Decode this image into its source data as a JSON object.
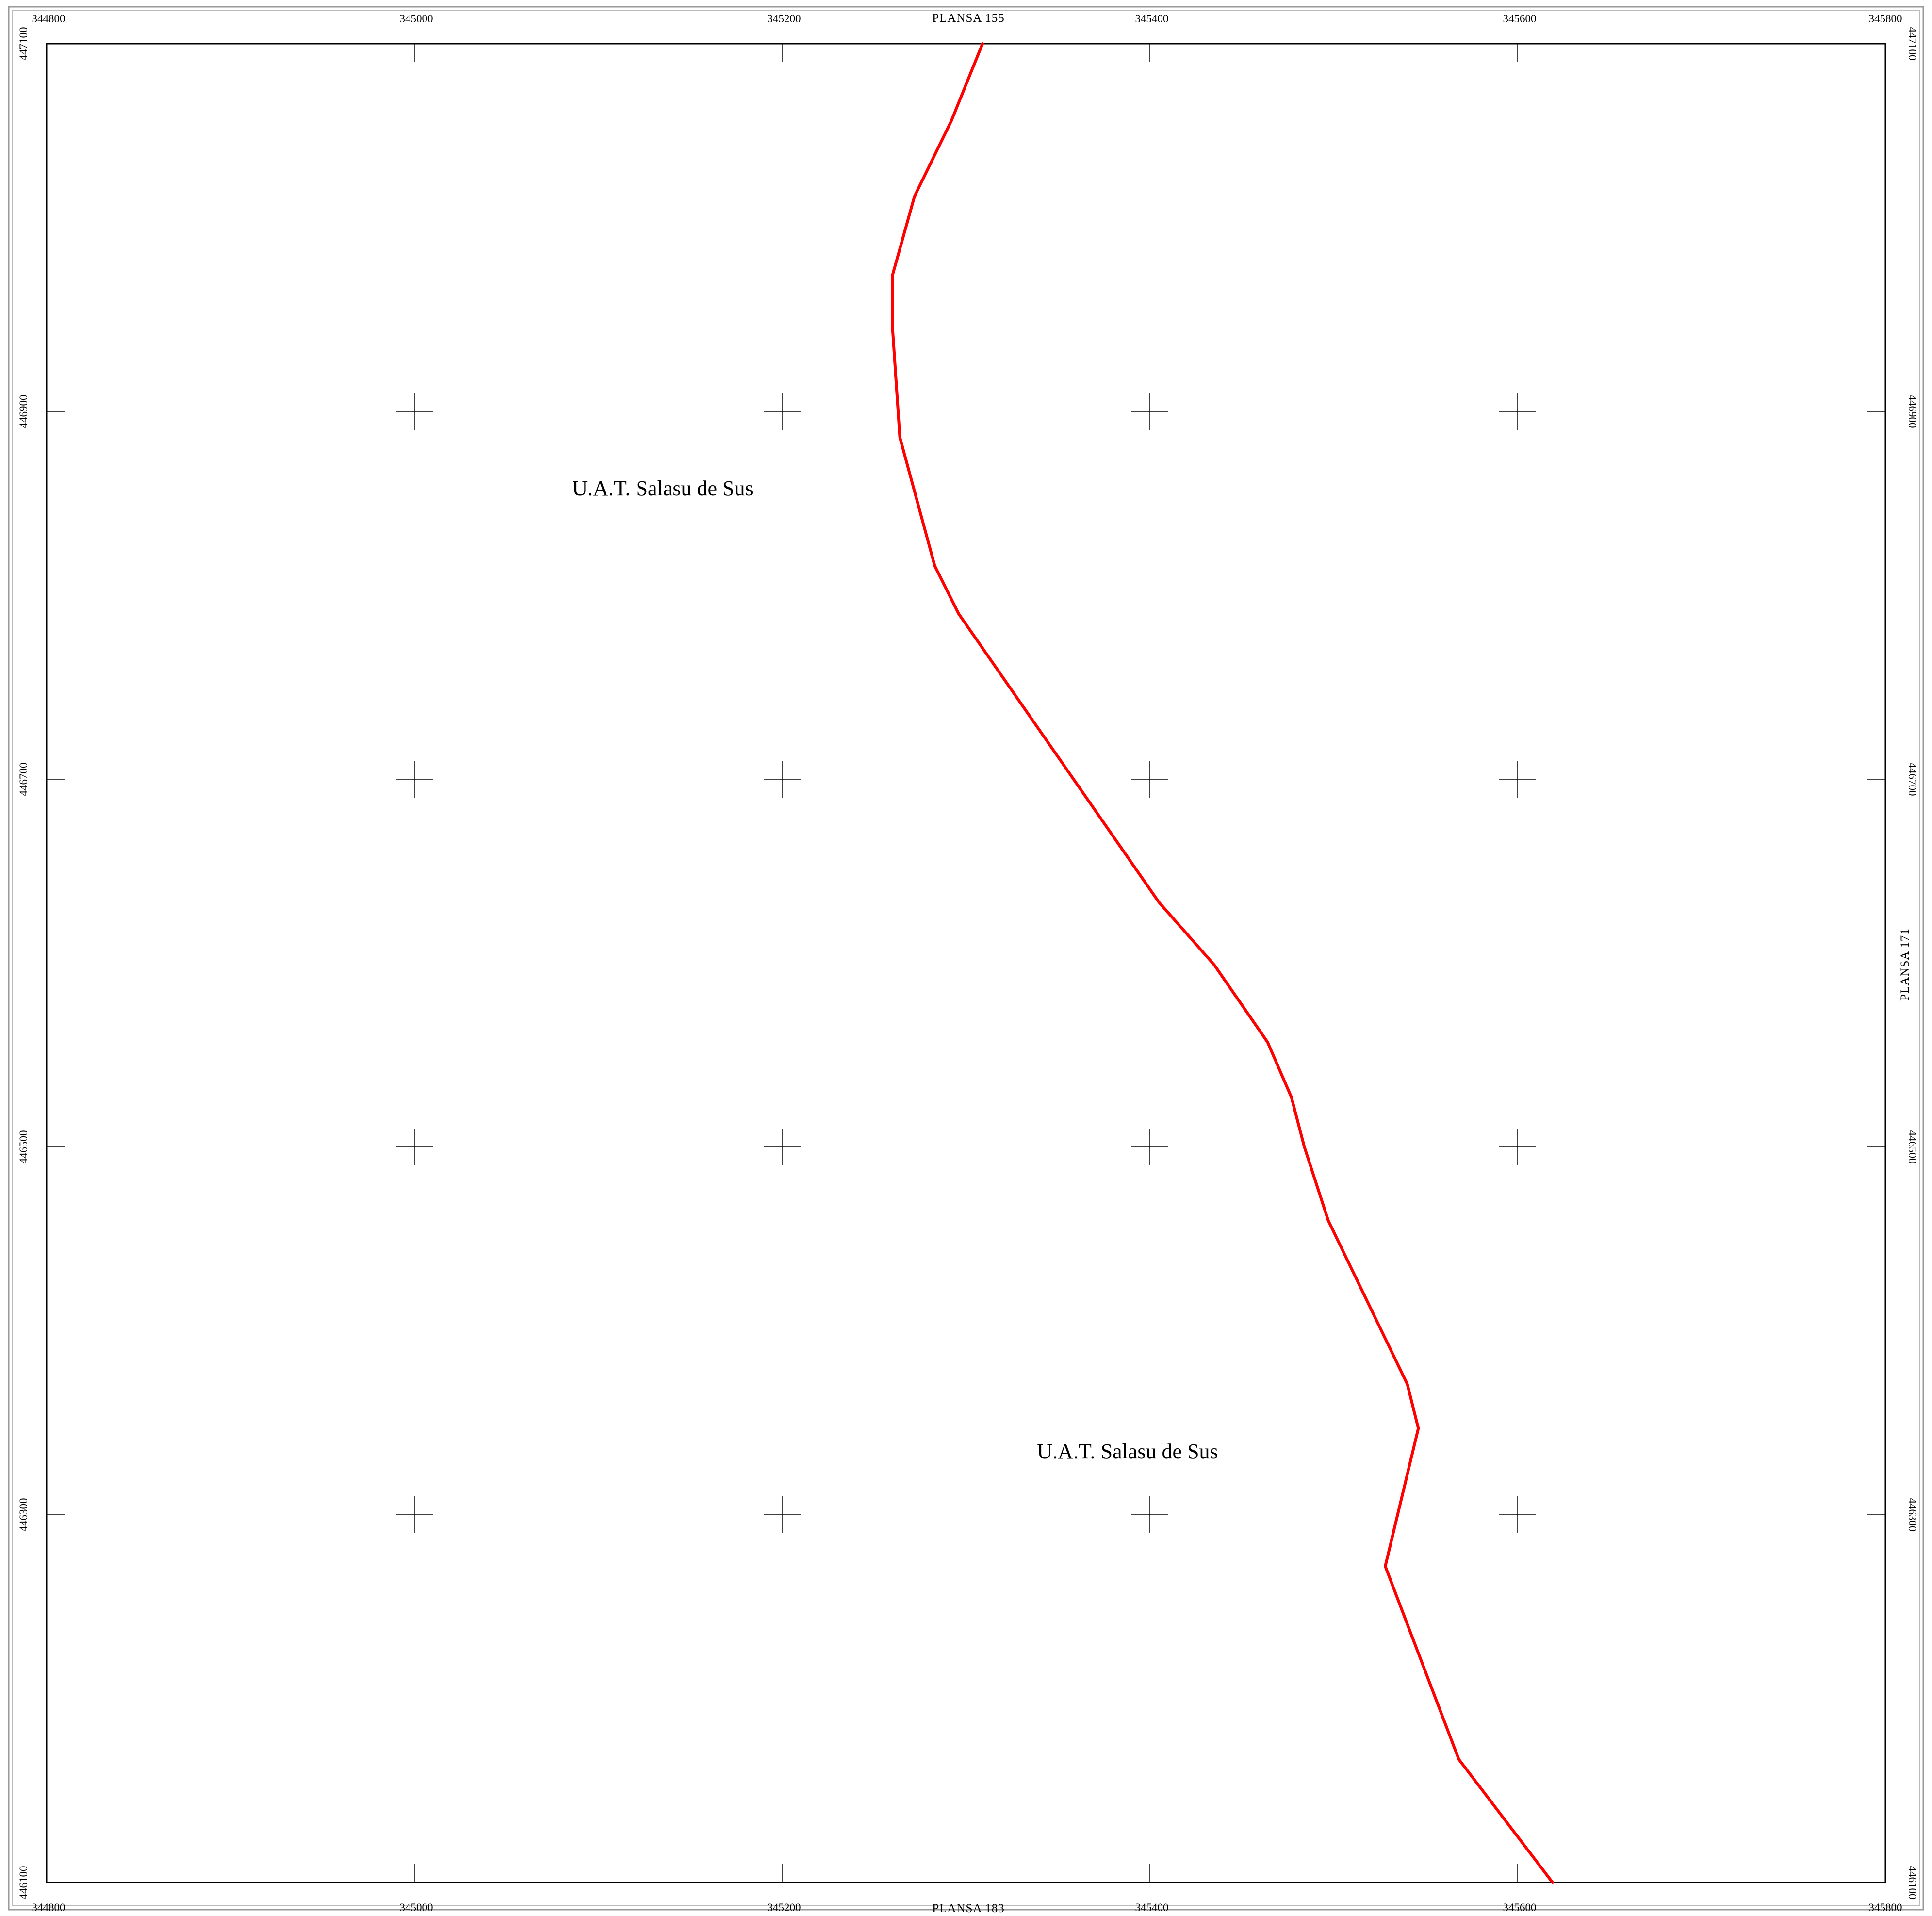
{
  "colors": {
    "boundary": "#ff0000",
    "grid": "#000000",
    "background": "#ffffff"
  },
  "sheet_labels": {
    "top": "PLANSA  155",
    "bottom": "PLANSA  183",
    "right": "PLANSA  171"
  },
  "area_labels": [
    "U.A.T. Salasu de Sus",
    "U.A.T. Salasu de Sus"
  ],
  "easting_ticks": [
    "344800",
    "345000",
    "345200",
    "345400",
    "345600",
    "345800"
  ],
  "northing_ticks": [
    "447100",
    "446900",
    "446700",
    "446500",
    "446300",
    "446100"
  ],
  "map_data": {
    "easting_range": [
      344800,
      345800
    ],
    "northing_range": [
      446100,
      447100
    ],
    "grid_crosses": {
      "eastings": [
        345000,
        345200,
        345400,
        345600
      ],
      "northings": [
        446900,
        446700,
        446500,
        446300
      ]
    },
    "boundary_line": [
      [
        345309,
        447100
      ],
      [
        345292,
        447058
      ],
      [
        345272,
        447017
      ],
      [
        345260,
        446974
      ],
      [
        345260,
        446946
      ],
      [
        345264,
        446886
      ],
      [
        345283,
        446816
      ],
      [
        345296,
        446790
      ],
      [
        345405,
        446633
      ],
      [
        345435,
        446599
      ],
      [
        345464,
        446557
      ],
      [
        345477,
        446527
      ],
      [
        345484,
        446500
      ],
      [
        345497,
        446460
      ],
      [
        345540,
        446371
      ],
      [
        345546,
        446347
      ],
      [
        345528,
        446272
      ],
      [
        345568,
        446167
      ],
      [
        345619,
        446100
      ]
    ]
  }
}
